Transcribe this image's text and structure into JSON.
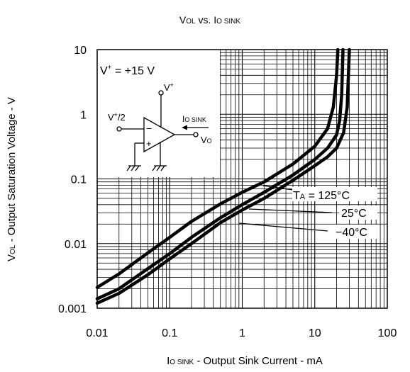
{
  "chart_data": {
    "type": "line",
    "title": "VOL vs. IO SINK",
    "title_parts": {
      "main": "V",
      "sub1": "OL",
      "mid": " vs. I",
      "sub2": "O SINK"
    },
    "xlabel": "IO SINK - Output Sink Current - mA",
    "xlabel_parts": {
      "main": "I",
      "sub": "O SINK",
      "rest": "  - Output Sink Current - mA"
    },
    "ylabel": "VOL - Output Saturation Voltage - V",
    "ylabel_parts": {
      "main": "V",
      "sub": "OL",
      "rest": " - Output Saturation Voltage - V"
    },
    "x_scale": "log",
    "y_scale": "log",
    "xlim": [
      0.01,
      100
    ],
    "ylim": [
      0.001,
      10
    ],
    "x_ticks": [
      0.01,
      0.1,
      1,
      10,
      100
    ],
    "x_tick_labels": [
      "0.01",
      "0.1",
      "1",
      "10",
      "100"
    ],
    "y_ticks": [
      0.001,
      0.01,
      0.1,
      1,
      10
    ],
    "y_tick_labels": [
      "0.001",
      "0.01",
      "0.1",
      "1",
      "10"
    ],
    "grid": true,
    "series": [
      {
        "name": "TA = 125°C",
        "x": [
          0.01,
          0.02,
          0.05,
          0.1,
          0.2,
          0.5,
          1,
          2,
          5,
          10,
          15,
          18,
          20,
          20.8
        ],
        "y": [
          0.0021,
          0.0034,
          0.0072,
          0.0125,
          0.022,
          0.041,
          0.062,
          0.09,
          0.17,
          0.32,
          0.6,
          1.3,
          4,
          10
        ]
      },
      {
        "name": "25°C",
        "x": [
          0.01,
          0.02,
          0.05,
          0.1,
          0.2,
          0.5,
          1,
          2,
          5,
          10,
          15,
          20,
          22,
          23.5,
          24.5
        ],
        "y": [
          0.0014,
          0.002,
          0.0041,
          0.007,
          0.0125,
          0.025,
          0.04,
          0.062,
          0.115,
          0.2,
          0.3,
          0.48,
          0.8,
          2,
          10
        ]
      },
      {
        "name": "−40°C",
        "x": [
          0.01,
          0.02,
          0.05,
          0.1,
          0.2,
          0.5,
          1,
          2,
          5,
          10,
          15,
          20,
          25,
          28,
          30
        ],
        "y": [
          0.0012,
          0.0017,
          0.0033,
          0.0058,
          0.01,
          0.021,
          0.033,
          0.05,
          0.095,
          0.16,
          0.22,
          0.3,
          0.52,
          1.3,
          10
        ]
      }
    ],
    "annotations": {
      "ta_prefix": "T",
      "ta_sub": "A",
      "ta_rest": " = 125°C",
      "label_25": "25°C",
      "label_m40": "−40°C"
    },
    "inset": {
      "supply": "V+ = +15 V",
      "supply_parts": {
        "v": "V",
        "sup": "+",
        "rest": " = +15 V"
      },
      "vplus_parts": {
        "v": "V",
        "sup": "+"
      },
      "vhalf_parts": {
        "v": "V",
        "sup": "+",
        "rest": "/2"
      },
      "isink_parts": {
        "main": "I",
        "sub": "O SINK"
      },
      "vo_parts": {
        "main": "V",
        "sub": "O"
      },
      "minus": "−",
      "plus": "+"
    }
  }
}
